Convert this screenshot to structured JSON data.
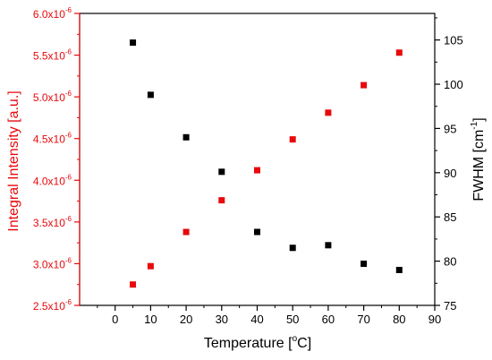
{
  "chart_data": {
    "type": "scatter",
    "xlabel": "Temperature [",
    "xlabel_unit": "o",
    "xlabel_end": "C]",
    "ylabel_left": "Integral Intensity [a.u.]",
    "ylabel_right": "FWHM [cm",
    "ylabel_right_sup": "-1",
    "ylabel_right_end": "]",
    "xlim": [
      -10,
      90
    ],
    "xticks": [
      "0",
      "10",
      "20",
      "30",
      "40",
      "50",
      "60",
      "70",
      "80",
      "90"
    ],
    "xtick_values": [
      0,
      10,
      20,
      30,
      40,
      50,
      60,
      70,
      80,
      90
    ],
    "ylim_left": [
      2.5e-06,
      6e-06
    ],
    "yticks_left": [
      "2.5x10",
      "3.0x10",
      "3.5x10",
      "4.0x10",
      "4.5x10",
      "5.0x10",
      "5.5x10",
      "6.0x10"
    ],
    "ytick_left_exponent": "-6",
    "ytick_left_values": [
      2.5e-06,
      3e-06,
      3.5e-06,
      4e-06,
      4.5e-06,
      5e-06,
      5.5e-06,
      6e-06
    ],
    "ylim_right": [
      75,
      108
    ],
    "yticks_right": [
      "75",
      "80",
      "85",
      "90",
      "95",
      "100",
      "105"
    ],
    "ytick_right_values": [
      75,
      80,
      85,
      90,
      95,
      100,
      105
    ],
    "colors": {
      "left_axis": "#e8090d",
      "right_axis": "#000000",
      "intensity": "#e8090d",
      "fwhm": "#000000"
    },
    "series": [
      {
        "axis": "left",
        "marker": "square",
        "x": [
          5,
          10,
          20,
          30,
          40,
          50,
          60,
          70,
          80
        ],
        "y": [
          2.75e-06,
          2.97e-06,
          3.38e-06,
          3.76e-06,
          4.12e-06,
          4.49e-06,
          4.81e-06,
          5.14e-06,
          5.53e-06
        ]
      },
      {
        "axis": "right",
        "marker": "square",
        "x": [
          5,
          10,
          20,
          30,
          40,
          50,
          60,
          70,
          80
        ],
        "y": [
          104.7,
          98.8,
          94.0,
          90.1,
          83.3,
          81.5,
          81.8,
          79.7,
          79.0
        ]
      }
    ]
  }
}
